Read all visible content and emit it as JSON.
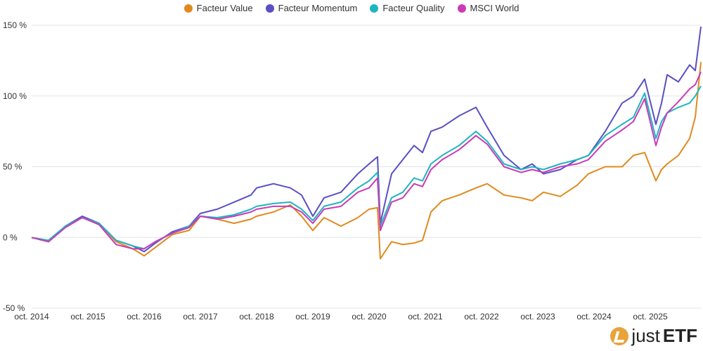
{
  "chart_data": {
    "type": "line",
    "x_ticks": [
      "oct. 2014",
      "oct. 2015",
      "oct. 2016",
      "oct. 2017",
      "oct. 2018",
      "oct. 2019",
      "oct. 2020",
      "oct. 2021",
      "oct. 2022",
      "oct. 2023",
      "oct. 2024",
      "oct. 2025"
    ],
    "y_ticks": [
      "150 %",
      "100 %",
      "50 %",
      "0 %",
      "-50 %"
    ],
    "ylim": [
      -50,
      150
    ],
    "xlim": [
      2014.0,
      2025.9
    ],
    "grid": true,
    "legend_position": "top-center",
    "series": [
      {
        "name": "Facteur Value",
        "color": "#E08A1E",
        "x": [
          2014.0,
          2014.3,
          2014.6,
          2014.9,
          2015.2,
          2015.5,
          2015.8,
          2016.0,
          2016.2,
          2016.5,
          2016.8,
          2017.0,
          2017.3,
          2017.6,
          2017.9,
          2018.0,
          2018.3,
          2018.6,
          2018.8,
          2019.0,
          2019.2,
          2019.5,
          2019.8,
          2020.0,
          2020.15,
          2020.2,
          2020.4,
          2020.6,
          2020.8,
          2020.95,
          2021.1,
          2021.3,
          2021.6,
          2021.9,
          2022.1,
          2022.4,
          2022.7,
          2022.9,
          2023.1,
          2023.4,
          2023.7,
          2023.9,
          2024.2,
          2024.5,
          2024.7,
          2024.9,
          2025.1,
          2025.2,
          2025.3,
          2025.5,
          2025.7,
          2025.8,
          2025.9
        ],
        "values": [
          0,
          -3,
          8,
          14,
          10,
          -3,
          -8,
          -13,
          -7,
          2,
          5,
          15,
          13,
          10,
          13,
          15,
          18,
          23,
          15,
          5,
          14,
          8,
          14,
          20,
          21,
          -15,
          -3,
          -5,
          -4,
          -2,
          18,
          26,
          30,
          35,
          38,
          30,
          28,
          26,
          32,
          29,
          37,
          45,
          50,
          50,
          58,
          60,
          40,
          48,
          52,
          58,
          70,
          85,
          124
        ]
      },
      {
        "name": "Facteur Momentum",
        "color": "#5A4FC3",
        "x": [
          2014.0,
          2014.3,
          2014.6,
          2014.9,
          2015.2,
          2015.5,
          2015.8,
          2016.0,
          2016.2,
          2016.5,
          2016.8,
          2017.0,
          2017.3,
          2017.6,
          2017.9,
          2018.0,
          2018.3,
          2018.6,
          2018.8,
          2019.0,
          2019.2,
          2019.5,
          2019.8,
          2020.0,
          2020.15,
          2020.2,
          2020.4,
          2020.6,
          2020.8,
          2020.95,
          2021.1,
          2021.3,
          2021.6,
          2021.9,
          2022.1,
          2022.4,
          2022.7,
          2022.9,
          2023.1,
          2023.4,
          2023.7,
          2023.9,
          2024.2,
          2024.5,
          2024.7,
          2024.9,
          2025.1,
          2025.2,
          2025.3,
          2025.5,
          2025.7,
          2025.8,
          2025.9
        ],
        "values": [
          0,
          -3,
          8,
          15,
          10,
          -2,
          -6,
          -10,
          -4,
          4,
          8,
          17,
          20,
          25,
          30,
          35,
          38,
          35,
          30,
          15,
          28,
          32,
          45,
          52,
          57,
          10,
          45,
          55,
          65,
          60,
          75,
          78,
          86,
          92,
          78,
          58,
          48,
          52,
          45,
          48,
          55,
          58,
          75,
          95,
          100,
          112,
          80,
          95,
          115,
          110,
          122,
          118,
          149
        ]
      },
      {
        "name": "Facteur Quality",
        "color": "#1FB5C0",
        "x": [
          2014.0,
          2014.3,
          2014.6,
          2014.9,
          2015.2,
          2015.5,
          2015.8,
          2016.0,
          2016.2,
          2016.5,
          2016.8,
          2017.0,
          2017.3,
          2017.6,
          2017.9,
          2018.0,
          2018.3,
          2018.6,
          2018.8,
          2019.0,
          2019.2,
          2019.5,
          2019.8,
          2020.0,
          2020.15,
          2020.2,
          2020.4,
          2020.6,
          2020.8,
          2020.95,
          2021.1,
          2021.3,
          2021.6,
          2021.9,
          2022.1,
          2022.4,
          2022.7,
          2022.9,
          2023.1,
          2023.4,
          2023.7,
          2023.9,
          2024.2,
          2024.5,
          2024.7,
          2024.9,
          2025.1,
          2025.2,
          2025.3,
          2025.5,
          2025.7,
          2025.8,
          2025.9
        ],
        "values": [
          0,
          -2,
          8,
          14,
          10,
          -2,
          -6,
          -8,
          -3,
          3,
          8,
          15,
          14,
          16,
          20,
          22,
          24,
          25,
          20,
          12,
          22,
          25,
          35,
          40,
          46,
          8,
          28,
          32,
          42,
          40,
          52,
          58,
          65,
          75,
          68,
          52,
          48,
          50,
          48,
          52,
          55,
          58,
          72,
          80,
          85,
          102,
          70,
          82,
          88,
          92,
          95,
          100,
          107
        ]
      },
      {
        "name": "MSCI World",
        "color": "#C93BB8",
        "x": [
          2014.0,
          2014.3,
          2014.6,
          2014.9,
          2015.2,
          2015.5,
          2015.8,
          2016.0,
          2016.2,
          2016.5,
          2016.8,
          2017.0,
          2017.3,
          2017.6,
          2017.9,
          2018.0,
          2018.3,
          2018.6,
          2018.8,
          2019.0,
          2019.2,
          2019.5,
          2019.8,
          2020.0,
          2020.15,
          2020.2,
          2020.4,
          2020.6,
          2020.8,
          2020.95,
          2021.1,
          2021.3,
          2021.6,
          2021.9,
          2022.1,
          2022.4,
          2022.7,
          2022.9,
          2023.1,
          2023.4,
          2023.7,
          2023.9,
          2024.2,
          2024.5,
          2024.7,
          2024.9,
          2025.1,
          2025.2,
          2025.3,
          2025.5,
          2025.7,
          2025.8,
          2025.9
        ],
        "values": [
          0,
          -3,
          7,
          14,
          9,
          -5,
          -8,
          -8,
          -3,
          3,
          7,
          15,
          13,
          15,
          18,
          20,
          22,
          22,
          18,
          10,
          20,
          22,
          32,
          35,
          42,
          5,
          25,
          28,
          38,
          36,
          48,
          55,
          62,
          72,
          66,
          50,
          46,
          48,
          46,
          50,
          52,
          55,
          68,
          76,
          82,
          98,
          65,
          78,
          88,
          96,
          105,
          108,
          117
        ]
      }
    ]
  },
  "legend": [
    {
      "label": "Facteur Value",
      "color": "#E08A1E"
    },
    {
      "label": "Facteur Momentum",
      "color": "#5A4FC3"
    },
    {
      "label": "Facteur Quality",
      "color": "#1FB5C0"
    },
    {
      "label": "MSCI World",
      "color": "#C93BB8"
    }
  ],
  "logo": {
    "text_just": "just",
    "text_etf": "ETF"
  }
}
